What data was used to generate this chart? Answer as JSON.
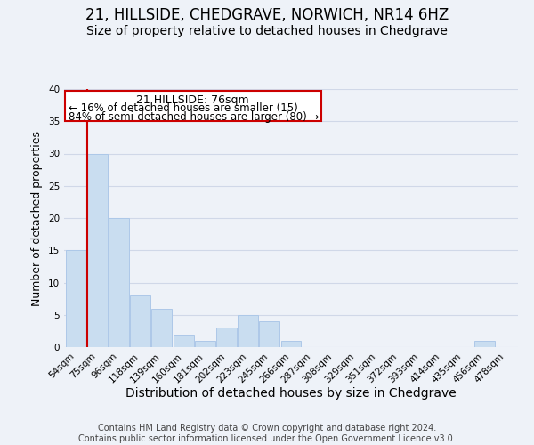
{
  "title": "21, HILLSIDE, CHEDGRAVE, NORWICH, NR14 6HZ",
  "subtitle": "Size of property relative to detached houses in Chedgrave",
  "xlabel": "Distribution of detached houses by size in Chedgrave",
  "ylabel": "Number of detached properties",
  "bin_labels": [
    "54sqm",
    "75sqm",
    "96sqm",
    "118sqm",
    "139sqm",
    "160sqm",
    "181sqm",
    "202sqm",
    "223sqm",
    "245sqm",
    "266sqm",
    "287sqm",
    "308sqm",
    "329sqm",
    "351sqm",
    "372sqm",
    "393sqm",
    "414sqm",
    "435sqm",
    "456sqm",
    "478sqm"
  ],
  "bar_heights": [
    15,
    30,
    20,
    8,
    6,
    2,
    1,
    3,
    5,
    4,
    1,
    0,
    0,
    0,
    0,
    0,
    0,
    0,
    0,
    1,
    0
  ],
  "bar_color": "#c9ddf0",
  "bar_edge_color": "#adc8e8",
  "highlight_line_color": "#cc0000",
  "annotation_title": "21 HILLSIDE: 76sqm",
  "annotation_line1": "← 16% of detached houses are smaller (15)",
  "annotation_line2": "84% of semi-detached houses are larger (80) →",
  "annotation_box_color": "#ffffff",
  "annotation_box_edge_color": "#cc0000",
  "ylim": [
    0,
    40
  ],
  "yticks": [
    0,
    5,
    10,
    15,
    20,
    25,
    30,
    35,
    40
  ],
  "grid_color": "#d0d8e8",
  "background_color": "#eef2f8",
  "footer_line1": "Contains HM Land Registry data © Crown copyright and database right 2024.",
  "footer_line2": "Contains public sector information licensed under the Open Government Licence v3.0.",
  "title_fontsize": 12,
  "subtitle_fontsize": 10,
  "xlabel_fontsize": 10,
  "ylabel_fontsize": 9,
  "tick_fontsize": 7.5,
  "annotation_fontsize": 9,
  "footer_fontsize": 7
}
